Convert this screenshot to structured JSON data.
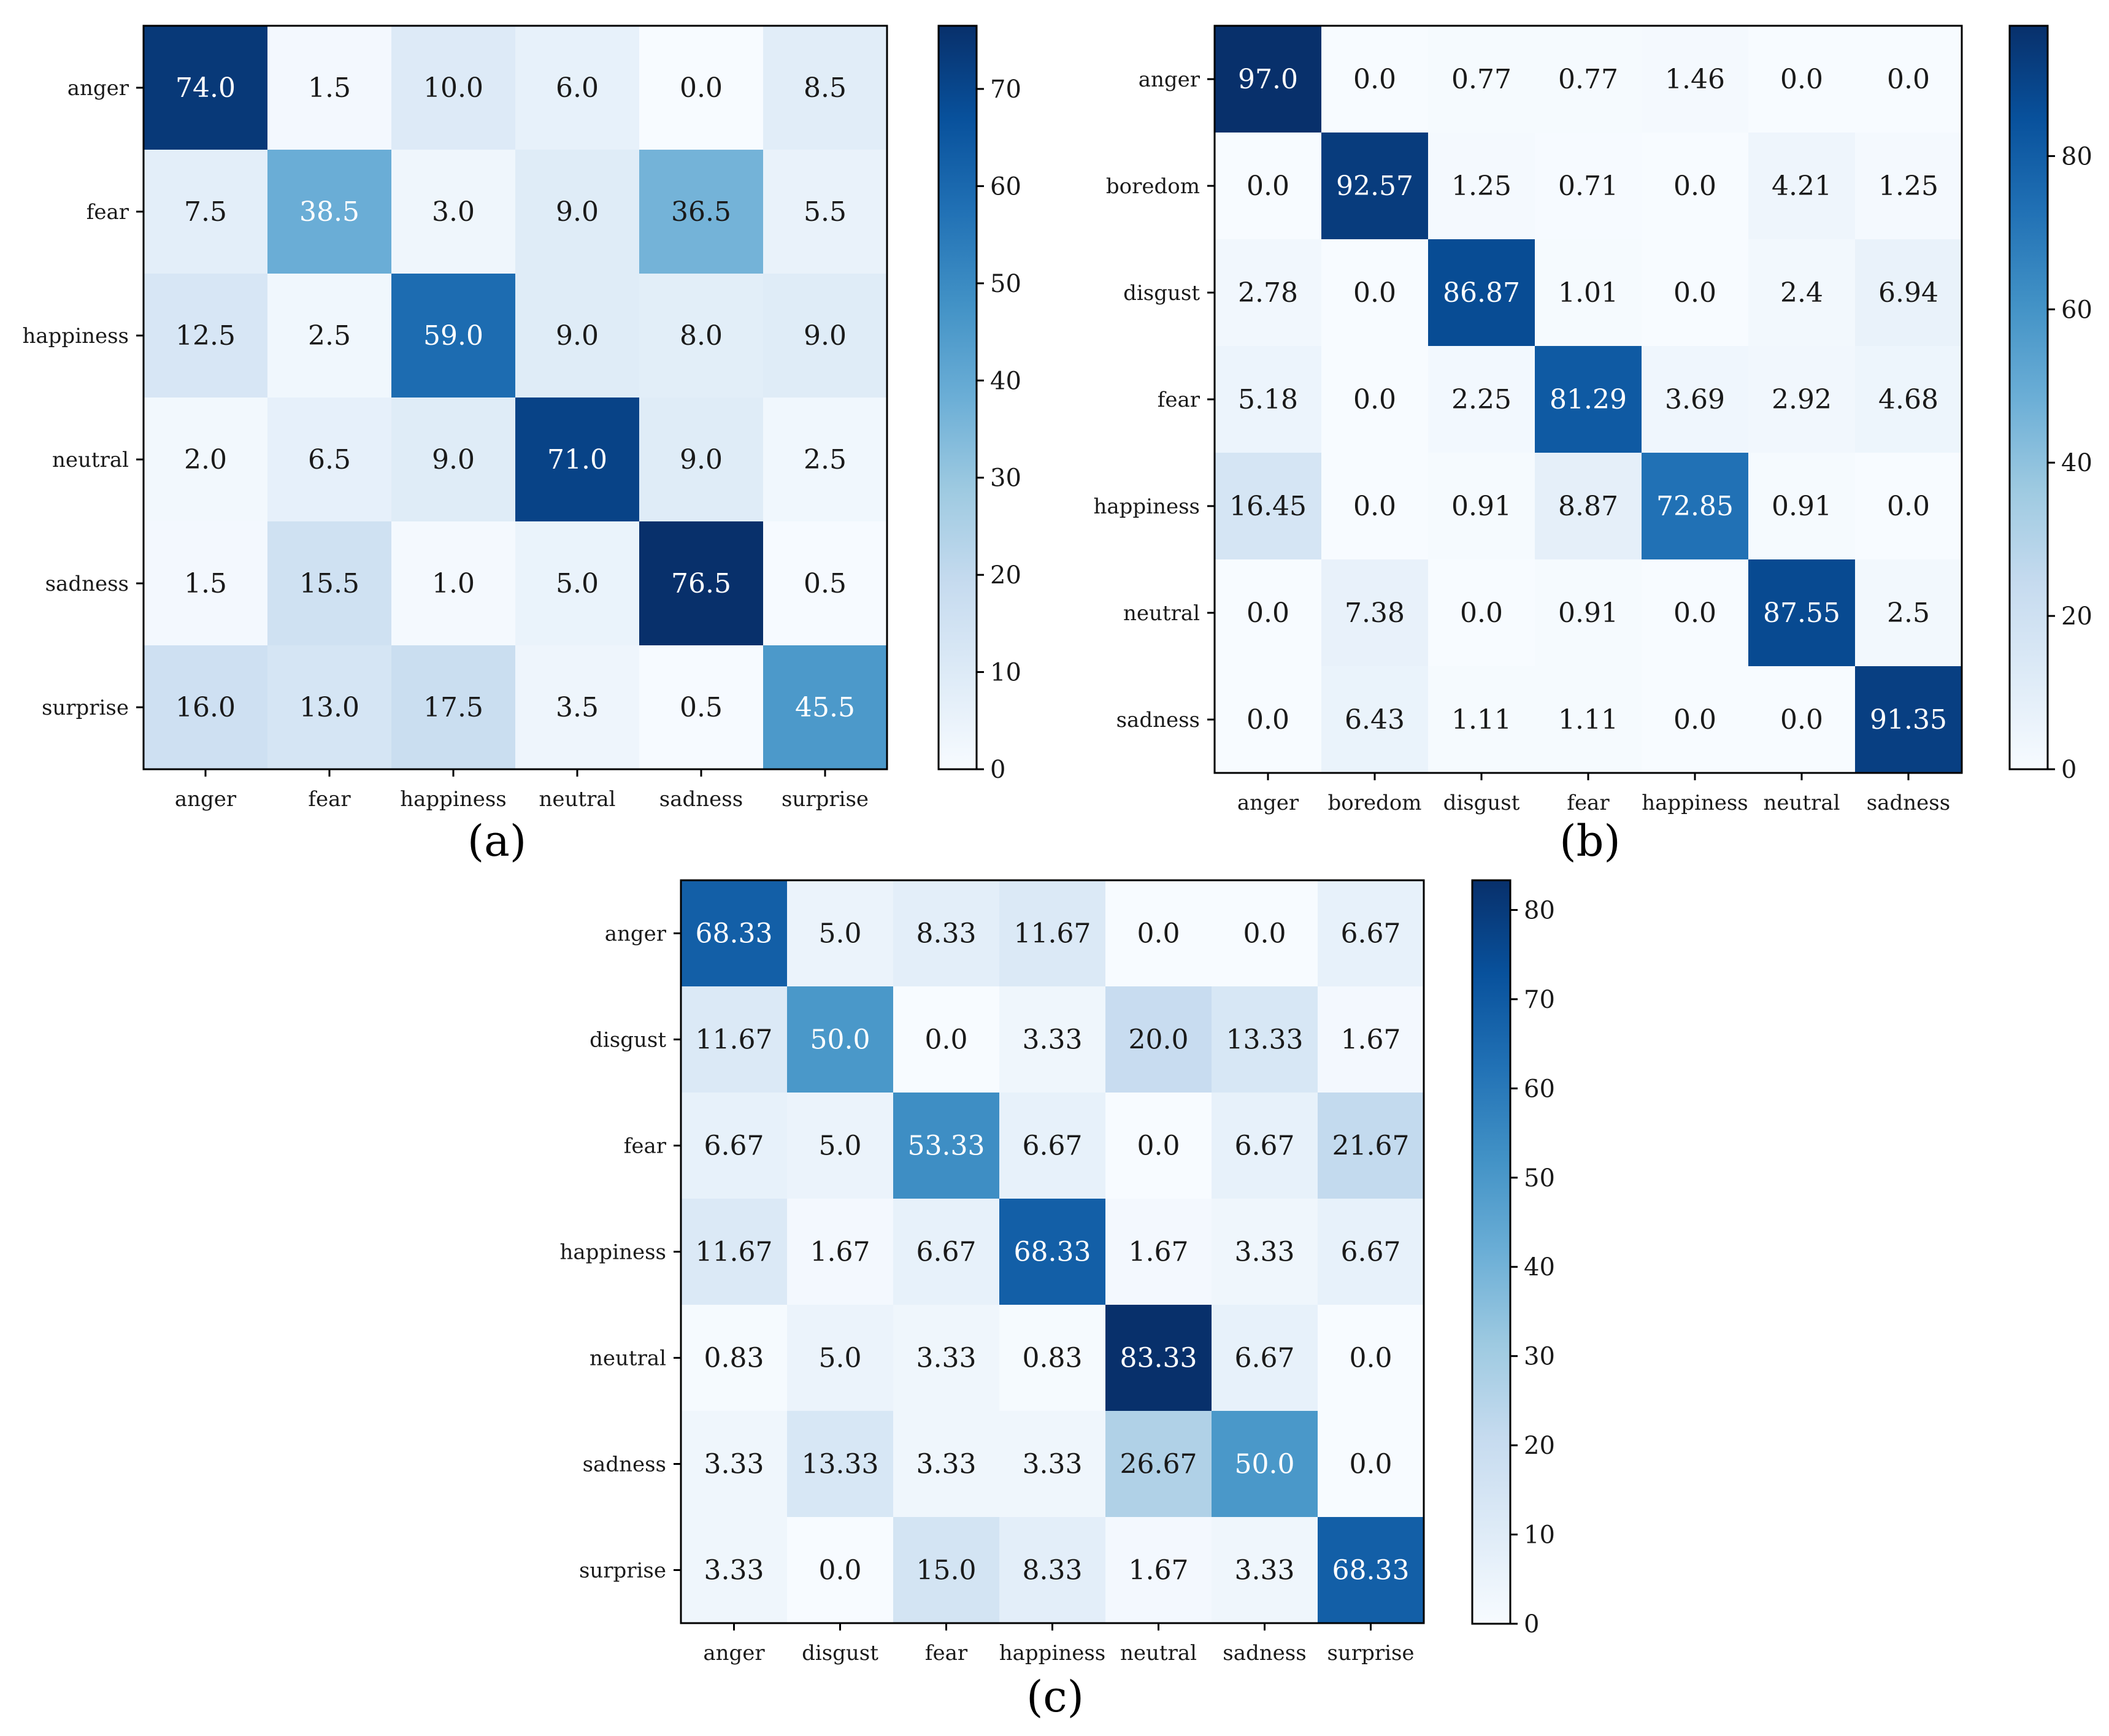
{
  "figure": {
    "panel_labels": [
      "(a)",
      "(b)",
      "(c)"
    ]
  },
  "colormap": {
    "name": "Blues",
    "stops": [
      "#f7fbff",
      "#deebf7",
      "#c6dbef",
      "#9ecae1",
      "#6baed6",
      "#4292c6",
      "#2171b5",
      "#08519c",
      "#08306b"
    ]
  },
  "chart_data": [
    {
      "type": "heatmap",
      "title": "",
      "panel_label": "(a)",
      "rows": [
        "anger",
        "fear",
        "happiness",
        "neutral",
        "sadness",
        "surprise"
      ],
      "cols": [
        "anger",
        "fear",
        "happiness",
        "neutral",
        "sadness",
        "surprise"
      ],
      "values": [
        [
          74.0,
          1.5,
          10.0,
          6.0,
          0.0,
          8.5
        ],
        [
          7.5,
          38.5,
          3.0,
          9.0,
          36.5,
          5.5
        ],
        [
          12.5,
          2.5,
          59.0,
          9.0,
          8.0,
          9.0
        ],
        [
          2.0,
          6.5,
          9.0,
          71.0,
          9.0,
          2.5
        ],
        [
          1.5,
          15.5,
          1.0,
          5.0,
          76.5,
          0.5
        ],
        [
          16.0,
          13.0,
          17.5,
          3.5,
          0.5,
          45.5
        ]
      ],
      "labels": [
        [
          "74.0",
          "1.5",
          "10.0",
          "6.0",
          "0.0",
          "8.5"
        ],
        [
          "7.5",
          "38.5",
          "3.0",
          "9.0",
          "36.5",
          "5.5"
        ],
        [
          "12.5",
          "2.5",
          "59.0",
          "9.0",
          "8.0",
          "9.0"
        ],
        [
          "2.0",
          "6.5",
          "9.0",
          "71.0",
          "9.0",
          "2.5"
        ],
        [
          "1.5",
          "15.5",
          "1.0",
          "5.0",
          "76.5",
          "0.5"
        ],
        [
          "16.0",
          "13.0",
          "17.5",
          "3.5",
          "0.5",
          "45.5"
        ]
      ],
      "colorbar": {
        "range": [
          0,
          76.5
        ],
        "ticks": [
          0,
          10,
          20,
          30,
          40,
          50,
          60,
          70
        ]
      }
    },
    {
      "type": "heatmap",
      "title": "",
      "panel_label": "(b)",
      "rows": [
        "anger",
        "boredom",
        "disgust",
        "fear",
        "happiness",
        "neutral",
        "sadness"
      ],
      "cols": [
        "anger",
        "boredom",
        "disgust",
        "fear",
        "happiness",
        "neutral",
        "sadness"
      ],
      "values": [
        [
          97.0,
          0.0,
          0.77,
          0.77,
          1.46,
          0.0,
          0.0
        ],
        [
          0.0,
          92.57,
          1.25,
          0.71,
          0.0,
          4.21,
          1.25
        ],
        [
          2.78,
          0.0,
          86.87,
          1.01,
          0.0,
          2.4,
          6.94
        ],
        [
          5.18,
          0.0,
          2.25,
          81.29,
          3.69,
          2.92,
          4.68
        ],
        [
          16.45,
          0.0,
          0.91,
          8.87,
          72.85,
          0.91,
          0.0
        ],
        [
          0.0,
          7.38,
          0.0,
          0.91,
          0.0,
          87.55,
          2.5
        ],
        [
          0.0,
          6.43,
          1.11,
          1.11,
          0.0,
          0.0,
          91.35
        ]
      ],
      "labels": [
        [
          "97.0",
          "0.0",
          "0.77",
          "0.77",
          "1.46",
          "0.0",
          "0.0"
        ],
        [
          "0.0",
          "92.57",
          "1.25",
          "0.71",
          "0.0",
          "4.21",
          "1.25"
        ],
        [
          "2.78",
          "0.0",
          "86.87",
          "1.01",
          "0.0",
          "2.4",
          "6.94"
        ],
        [
          "5.18",
          "0.0",
          "2.25",
          "81.29",
          "3.69",
          "2.92",
          "4.68"
        ],
        [
          "16.45",
          "0.0",
          "0.91",
          "8.87",
          "72.85",
          "0.91",
          "0.0"
        ],
        [
          "0.0",
          "7.38",
          "0.0",
          "0.91",
          "0.0",
          "87.55",
          "2.5"
        ],
        [
          "0.0",
          "6.43",
          "1.11",
          "1.11",
          "0.0",
          "0.0",
          "91.35"
        ]
      ],
      "colorbar": {
        "range": [
          0,
          97.0
        ],
        "ticks": [
          0,
          20,
          40,
          60,
          80
        ]
      }
    },
    {
      "type": "heatmap",
      "title": "",
      "panel_label": "(c)",
      "rows": [
        "anger",
        "disgust",
        "fear",
        "happiness",
        "neutral",
        "sadness",
        "surprise"
      ],
      "cols": [
        "anger",
        "disgust",
        "fear",
        "happiness",
        "neutral",
        "sadness",
        "surprise"
      ],
      "values": [
        [
          68.33,
          5.0,
          8.33,
          11.67,
          0.0,
          0.0,
          6.67
        ],
        [
          11.67,
          50.0,
          0.0,
          3.33,
          20.0,
          13.33,
          1.67
        ],
        [
          6.67,
          5.0,
          53.33,
          6.67,
          0.0,
          6.67,
          21.67
        ],
        [
          11.67,
          1.67,
          6.67,
          68.33,
          1.67,
          3.33,
          6.67
        ],
        [
          0.83,
          5.0,
          3.33,
          0.83,
          83.33,
          6.67,
          0.0
        ],
        [
          3.33,
          13.33,
          3.33,
          3.33,
          26.67,
          50.0,
          0.0
        ],
        [
          3.33,
          0.0,
          15.0,
          8.33,
          1.67,
          3.33,
          68.33
        ]
      ],
      "labels": [
        [
          "68.33",
          "5.0",
          "8.33",
          "11.67",
          "0.0",
          "0.0",
          "6.67"
        ],
        [
          "11.67",
          "50.0",
          "0.0",
          "3.33",
          "20.0",
          "13.33",
          "1.67"
        ],
        [
          "6.67",
          "5.0",
          "53.33",
          "6.67",
          "0.0",
          "6.67",
          "21.67"
        ],
        [
          "11.67",
          "1.67",
          "6.67",
          "68.33",
          "1.67",
          "3.33",
          "6.67"
        ],
        [
          "0.83",
          "5.0",
          "3.33",
          "0.83",
          "83.33",
          "6.67",
          "0.0"
        ],
        [
          "3.33",
          "13.33",
          "3.33",
          "3.33",
          "26.67",
          "50.0",
          "0.0"
        ],
        [
          "3.33",
          "0.0",
          "15.0",
          "8.33",
          "1.67",
          "3.33",
          "68.33"
        ]
      ],
      "colorbar": {
        "range": [
          0,
          83.33
        ],
        "ticks": [
          0,
          10,
          20,
          30,
          40,
          50,
          60,
          70,
          80
        ]
      }
    }
  ]
}
